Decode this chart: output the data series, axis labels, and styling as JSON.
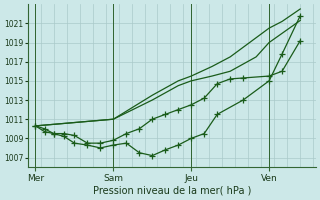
{
  "bg_color": "#cce8e8",
  "plot_bg_color": "#cce8e8",
  "grid_color": "#aacaca",
  "line_color": "#1a5c1a",
  "xlabel": "Pression niveau de la mer( hPa )",
  "ylim": [
    1006.0,
    1023.0
  ],
  "yticks": [
    1007,
    1009,
    1011,
    1013,
    1015,
    1017,
    1019,
    1021
  ],
  "xlim": [
    -0.3,
    10.8
  ],
  "day_labels": [
    "Mer",
    "Sam",
    "Jeu",
    "Ven"
  ],
  "day_positions": [
    0,
    3,
    6,
    9
  ],
  "vline_positions": [
    0,
    3,
    6,
    9
  ],
  "s1_x": [
    0,
    3.0,
    4.5,
    5.5,
    6.0,
    6.8,
    7.5,
    8.5,
    9.0,
    9.5,
    10.2
  ],
  "s1_y": [
    1010.3,
    1011.0,
    1013.5,
    1015.0,
    1015.5,
    1016.5,
    1017.5,
    1019.5,
    1020.5,
    1021.2,
    1022.5
  ],
  "s2_x": [
    0,
    3.0,
    4.5,
    5.5,
    6.0,
    6.8,
    7.5,
    8.5,
    9.0,
    10.2
  ],
  "s2_y": [
    1010.3,
    1011.0,
    1013.0,
    1014.5,
    1015.0,
    1015.5,
    1016.0,
    1017.5,
    1019.0,
    1021.3
  ],
  "s3_x": [
    0,
    0.35,
    0.7,
    1.1,
    1.5,
    2.0,
    2.5,
    3.0,
    3.5,
    4.0,
    4.5,
    5.0,
    5.5,
    6.0,
    6.5,
    7.0,
    7.5,
    8.0,
    9.0,
    9.5,
    10.2
  ],
  "s3_y": [
    1010.3,
    1010.0,
    1009.5,
    1009.5,
    1009.3,
    1008.5,
    1008.5,
    1008.8,
    1009.5,
    1010.0,
    1011.0,
    1011.5,
    1012.0,
    1012.5,
    1013.2,
    1014.7,
    1015.2,
    1015.3,
    1015.5,
    1016.0,
    1019.2
  ],
  "s4_x": [
    0,
    0.35,
    0.7,
    1.1,
    1.5,
    2.0,
    2.5,
    3.0,
    3.5,
    4.0,
    4.5,
    5.0,
    5.5,
    6.0,
    6.5,
    7.0,
    8.0,
    9.0,
    9.5,
    10.2
  ],
  "s4_y": [
    1010.3,
    1009.7,
    1009.5,
    1009.2,
    1008.5,
    1008.3,
    1008.0,
    1008.3,
    1008.5,
    1007.5,
    1007.2,
    1007.8,
    1008.3,
    1009.0,
    1009.5,
    1011.5,
    1013.0,
    1015.0,
    1017.8,
    1021.8
  ]
}
